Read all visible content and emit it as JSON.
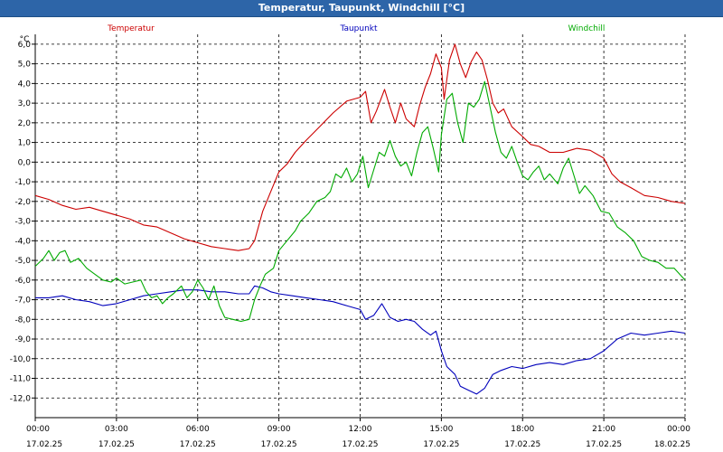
{
  "window": {
    "title": "Temperatur, Taupunkt, Windchill [°C]"
  },
  "chart_data": {
    "type": "line",
    "title": "Temperatur, Taupunkt, Windchill [°C]",
    "ylabel": "°C",
    "xlabel": "",
    "ylim": [
      -13,
      6.5
    ],
    "yticks": [
      6.0,
      5.0,
      4.0,
      3.0,
      2.0,
      1.0,
      0.0,
      -1.0,
      -2.0,
      -3.0,
      -4.0,
      -5.0,
      -6.0,
      -7.0,
      -8.0,
      -9.0,
      -10.0,
      -11.0,
      -12.0
    ],
    "ytick_labels": [
      "6,0",
      "5,0",
      "4,0",
      "3,0",
      "2,0",
      "1,0",
      "0,0",
      "-1,0",
      "-2,0",
      "-3,0",
      "-4,0",
      "-5,0",
      "-6,0",
      "-7,0",
      "-8,0",
      "-9,0",
      "-10,0",
      "-11,0",
      "-12,0"
    ],
    "xlim_hours": [
      0,
      24
    ],
    "xticks": [
      {
        "hour": 0,
        "time": "00:00",
        "date": "17.02.25"
      },
      {
        "hour": 3,
        "time": "03:00",
        "date": "17.02.25"
      },
      {
        "hour": 6,
        "time": "06:00",
        "date": "17.02.25"
      },
      {
        "hour": 9,
        "time": "09:00",
        "date": "17.02.25"
      },
      {
        "hour": 12,
        "time": "12:00",
        "date": "17.02.25"
      },
      {
        "hour": 15,
        "time": "15:00",
        "date": "17.02.25"
      },
      {
        "hour": 18,
        "time": "18:00",
        "date": "17.02.25"
      },
      {
        "hour": 21,
        "time": "21:00",
        "date": "17.02.25"
      },
      {
        "hour": 24,
        "time": "00:00",
        "date": "18.02.25"
      }
    ],
    "grid": true,
    "legend_placement": "top",
    "series": [
      {
        "name": "Temperatur",
        "color": "#cc0000",
        "points": [
          [
            0,
            -1.7
          ],
          [
            0.5,
            -1.9
          ],
          [
            1,
            -2.2
          ],
          [
            1.5,
            -2.4
          ],
          [
            2,
            -2.3
          ],
          [
            2.5,
            -2.5
          ],
          [
            3,
            -2.7
          ],
          [
            3.5,
            -2.9
          ],
          [
            4,
            -3.2
          ],
          [
            4.5,
            -3.3
          ],
          [
            5,
            -3.6
          ],
          [
            5.5,
            -3.9
          ],
          [
            6,
            -4.1
          ],
          [
            6.5,
            -4.3
          ],
          [
            7,
            -4.4
          ],
          [
            7.5,
            -4.5
          ],
          [
            7.9,
            -4.4
          ],
          [
            8.1,
            -4.0
          ],
          [
            8.4,
            -2.5
          ],
          [
            8.7,
            -1.5
          ],
          [
            9,
            -0.5
          ],
          [
            9.3,
            -0.1
          ],
          [
            9.6,
            0.5
          ],
          [
            10,
            1.1
          ],
          [
            10.5,
            1.8
          ],
          [
            11,
            2.5
          ],
          [
            11.5,
            3.1
          ],
          [
            12,
            3.3
          ],
          [
            12.2,
            3.6
          ],
          [
            12.4,
            2.0
          ],
          [
            12.6,
            2.6
          ],
          [
            12.9,
            3.7
          ],
          [
            13.1,
            2.8
          ],
          [
            13.3,
            2.0
          ],
          [
            13.5,
            3.0
          ],
          [
            13.7,
            2.2
          ],
          [
            14,
            1.8
          ],
          [
            14.2,
            2.9
          ],
          [
            14.4,
            3.8
          ],
          [
            14.6,
            4.5
          ],
          [
            14.8,
            5.5
          ],
          [
            15,
            4.8
          ],
          [
            15.1,
            3.2
          ],
          [
            15.3,
            5.2
          ],
          [
            15.5,
            6.0
          ],
          [
            15.7,
            5.0
          ],
          [
            15.9,
            4.3
          ],
          [
            16.1,
            5.1
          ],
          [
            16.3,
            5.6
          ],
          [
            16.5,
            5.2
          ],
          [
            16.7,
            4.2
          ],
          [
            16.9,
            3.0
          ],
          [
            17.1,
            2.5
          ],
          [
            17.3,
            2.7
          ],
          [
            17.6,
            1.8
          ],
          [
            18,
            1.3
          ],
          [
            18.3,
            0.9
          ],
          [
            18.6,
            0.8
          ],
          [
            19,
            0.5
          ],
          [
            19.5,
            0.5
          ],
          [
            20,
            0.7
          ],
          [
            20.5,
            0.6
          ],
          [
            21,
            0.2
          ],
          [
            21.3,
            -0.6
          ],
          [
            21.6,
            -1.0
          ],
          [
            22,
            -1.3
          ],
          [
            22.5,
            -1.7
          ],
          [
            23,
            -1.8
          ],
          [
            23.5,
            -2.0
          ],
          [
            24,
            -2.1
          ]
        ]
      },
      {
        "name": "Taupunkt",
        "color": "#0000bb",
        "points": [
          [
            0,
            -6.9
          ],
          [
            0.5,
            -6.9
          ],
          [
            1,
            -6.8
          ],
          [
            1.5,
            -7.0
          ],
          [
            2,
            -7.1
          ],
          [
            2.5,
            -7.3
          ],
          [
            3,
            -7.2
          ],
          [
            3.5,
            -7.0
          ],
          [
            4,
            -6.8
          ],
          [
            4.5,
            -6.7
          ],
          [
            5,
            -6.6
          ],
          [
            5.5,
            -6.5
          ],
          [
            6,
            -6.5
          ],
          [
            6.5,
            -6.6
          ],
          [
            7,
            -6.6
          ],
          [
            7.5,
            -6.7
          ],
          [
            7.9,
            -6.7
          ],
          [
            8.1,
            -6.3
          ],
          [
            8.4,
            -6.4
          ],
          [
            8.7,
            -6.6
          ],
          [
            9,
            -6.7
          ],
          [
            9.5,
            -6.8
          ],
          [
            10,
            -6.9
          ],
          [
            10.5,
            -7.0
          ],
          [
            11,
            -7.1
          ],
          [
            11.5,
            -7.3
          ],
          [
            12,
            -7.5
          ],
          [
            12.2,
            -8.0
          ],
          [
            12.5,
            -7.8
          ],
          [
            12.8,
            -7.2
          ],
          [
            13.1,
            -7.9
          ],
          [
            13.4,
            -8.1
          ],
          [
            13.7,
            -8.0
          ],
          [
            14,
            -8.1
          ],
          [
            14.3,
            -8.5
          ],
          [
            14.6,
            -8.8
          ],
          [
            14.8,
            -8.6
          ],
          [
            15,
            -9.6
          ],
          [
            15.2,
            -10.4
          ],
          [
            15.5,
            -10.8
          ],
          [
            15.7,
            -11.4
          ],
          [
            16,
            -11.6
          ],
          [
            16.3,
            -11.8
          ],
          [
            16.6,
            -11.5
          ],
          [
            16.9,
            -10.8
          ],
          [
            17.2,
            -10.6
          ],
          [
            17.6,
            -10.4
          ],
          [
            18,
            -10.5
          ],
          [
            18.5,
            -10.3
          ],
          [
            19,
            -10.2
          ],
          [
            19.5,
            -10.3
          ],
          [
            20,
            -10.1
          ],
          [
            20.5,
            -10.0
          ],
          [
            21,
            -9.6
          ],
          [
            21.5,
            -9.0
          ],
          [
            22,
            -8.7
          ],
          [
            22.5,
            -8.8
          ],
          [
            23,
            -8.7
          ],
          [
            23.5,
            -8.6
          ],
          [
            24,
            -8.7
          ]
        ]
      },
      {
        "name": "Windchill",
        "color": "#00aa00",
        "points": [
          [
            0,
            -5.3
          ],
          [
            0.3,
            -4.9
          ],
          [
            0.5,
            -4.5
          ],
          [
            0.7,
            -5.0
          ],
          [
            0.9,
            -4.6
          ],
          [
            1.1,
            -4.5
          ],
          [
            1.3,
            -5.1
          ],
          [
            1.6,
            -4.9
          ],
          [
            1.9,
            -5.4
          ],
          [
            2.2,
            -5.7
          ],
          [
            2.5,
            -6.0
          ],
          [
            2.8,
            -6.1
          ],
          [
            3,
            -5.9
          ],
          [
            3.3,
            -6.2
          ],
          [
            3.6,
            -6.1
          ],
          [
            3.9,
            -6.0
          ],
          [
            4.1,
            -6.6
          ],
          [
            4.3,
            -6.9
          ],
          [
            4.5,
            -6.8
          ],
          [
            4.7,
            -7.2
          ],
          [
            4.9,
            -6.9
          ],
          [
            5.1,
            -6.7
          ],
          [
            5.4,
            -6.3
          ],
          [
            5.6,
            -6.9
          ],
          [
            5.8,
            -6.6
          ],
          [
            6,
            -6.0
          ],
          [
            6.2,
            -6.4
          ],
          [
            6.4,
            -7.0
          ],
          [
            6.6,
            -6.3
          ],
          [
            6.8,
            -7.3
          ],
          [
            7,
            -7.9
          ],
          [
            7.3,
            -8.0
          ],
          [
            7.6,
            -8.1
          ],
          [
            7.9,
            -8.0
          ],
          [
            8.1,
            -7.0
          ],
          [
            8.3,
            -6.3
          ],
          [
            8.5,
            -5.7
          ],
          [
            8.8,
            -5.4
          ],
          [
            9,
            -4.5
          ],
          [
            9.3,
            -4.0
          ],
          [
            9.6,
            -3.5
          ],
          [
            9.8,
            -3.0
          ],
          [
            10.1,
            -2.6
          ],
          [
            10.4,
            -2.0
          ],
          [
            10.7,
            -1.8
          ],
          [
            10.9,
            -1.5
          ],
          [
            11.1,
            -0.6
          ],
          [
            11.3,
            -0.8
          ],
          [
            11.5,
            -0.3
          ],
          [
            11.7,
            -1.0
          ],
          [
            11.9,
            -0.6
          ],
          [
            12.1,
            0.3
          ],
          [
            12.3,
            -1.3
          ],
          [
            12.5,
            -0.4
          ],
          [
            12.7,
            0.5
          ],
          [
            12.9,
            0.3
          ],
          [
            13.1,
            1.1
          ],
          [
            13.3,
            0.3
          ],
          [
            13.5,
            -0.2
          ],
          [
            13.7,
            0.0
          ],
          [
            13.9,
            -0.7
          ],
          [
            14.1,
            0.5
          ],
          [
            14.3,
            1.5
          ],
          [
            14.5,
            1.8
          ],
          [
            14.7,
            0.7
          ],
          [
            14.9,
            -0.5
          ],
          [
            15,
            1.4
          ],
          [
            15.2,
            3.2
          ],
          [
            15.4,
            3.5
          ],
          [
            15.6,
            2.0
          ],
          [
            15.8,
            1.0
          ],
          [
            16,
            3.0
          ],
          [
            16.2,
            2.8
          ],
          [
            16.4,
            3.2
          ],
          [
            16.6,
            4.1
          ],
          [
            16.8,
            2.8
          ],
          [
            17,
            1.5
          ],
          [
            17.2,
            0.5
          ],
          [
            17.4,
            0.2
          ],
          [
            17.6,
            0.8
          ],
          [
            17.8,
            0.0
          ],
          [
            18,
            -0.7
          ],
          [
            18.2,
            -0.9
          ],
          [
            18.4,
            -0.5
          ],
          [
            18.6,
            -0.2
          ],
          [
            18.8,
            -0.9
          ],
          [
            19,
            -0.6
          ],
          [
            19.3,
            -1.1
          ],
          [
            19.5,
            -0.3
          ],
          [
            19.7,
            0.2
          ],
          [
            19.9,
            -0.7
          ],
          [
            20.1,
            -1.6
          ],
          [
            20.3,
            -1.2
          ],
          [
            20.6,
            -1.7
          ],
          [
            20.9,
            -2.5
          ],
          [
            21.2,
            -2.6
          ],
          [
            21.5,
            -3.3
          ],
          [
            21.8,
            -3.6
          ],
          [
            22.1,
            -4.0
          ],
          [
            22.4,
            -4.8
          ],
          [
            22.7,
            -5.0
          ],
          [
            23,
            -5.1
          ],
          [
            23.3,
            -5.4
          ],
          [
            23.6,
            -5.4
          ],
          [
            24,
            -6.0
          ]
        ]
      }
    ]
  }
}
